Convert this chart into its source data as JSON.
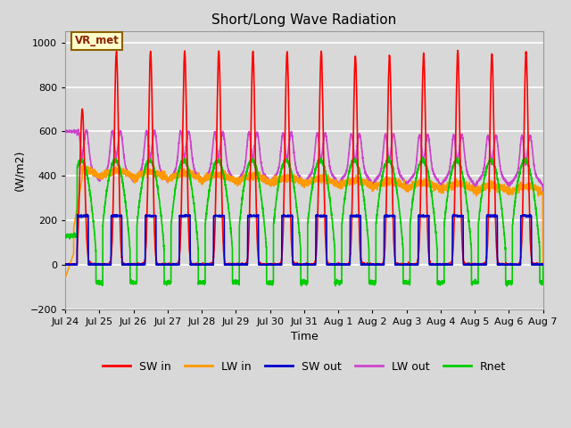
{
  "title": "Short/Long Wave Radiation",
  "xlabel": "Time",
  "ylabel": "(W/m2)",
  "ylim": [
    -200,
    1050
  ],
  "series_names": [
    "SW in",
    "LW in",
    "SW out",
    "LW out",
    "Rnet"
  ],
  "series_colors": [
    "#ff0000",
    "#ff9900",
    "#0000cc",
    "#cc44cc",
    "#00cc00"
  ],
  "series_linewidths": [
    1.2,
    1.2,
    1.2,
    1.2,
    1.2
  ],
  "annotation_text": "VR_met",
  "bg_color": "#d8d8d8",
  "n_days": 14,
  "tick_labels": [
    "Jul 24",
    "Jul 25",
    "Jul 26",
    "Jul 27",
    "Jul 28",
    "Jul 29",
    "Jul 30",
    "Jul 31",
    "Aug 1",
    "Aug 2",
    "Aug 3",
    "Aug 4",
    "Aug 5",
    "Aug 6",
    "Aug 7"
  ],
  "grid_color": "#ffffff",
  "title_fontsize": 11
}
